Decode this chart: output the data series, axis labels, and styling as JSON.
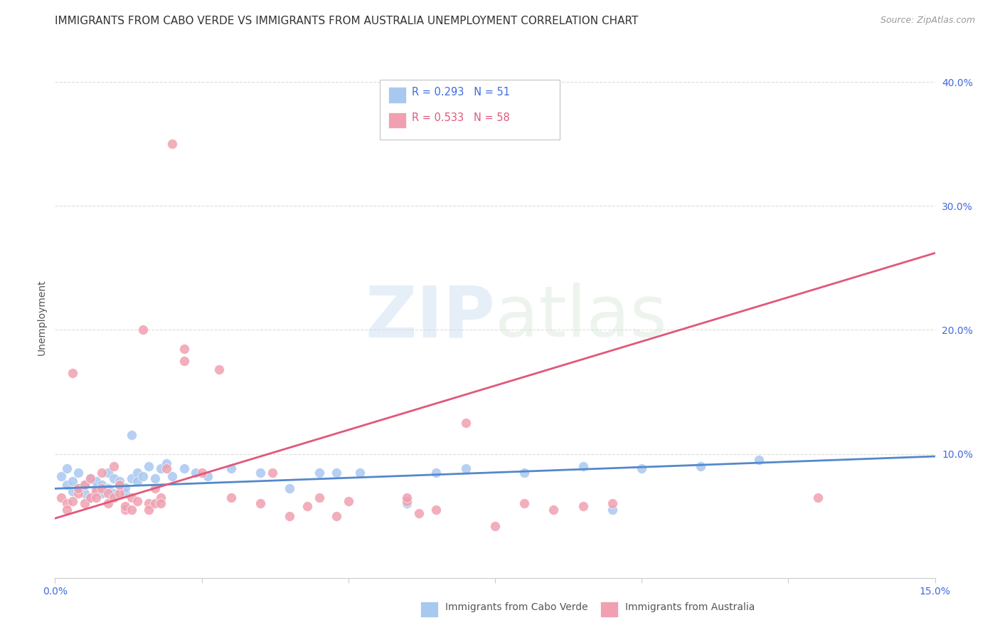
{
  "title": "IMMIGRANTS FROM CABO VERDE VS IMMIGRANTS FROM AUSTRALIA UNEMPLOYMENT CORRELATION CHART",
  "source": "Source: ZipAtlas.com",
  "ylabel": "Unemployment",
  "x_min": 0.0,
  "x_max": 0.15,
  "y_min": 0.0,
  "y_max": 0.42,
  "y_ticks": [
    0.1,
    0.2,
    0.3,
    0.4
  ],
  "y_tick_labels": [
    "10.0%",
    "20.0%",
    "30.0%",
    "40.0%"
  ],
  "watermark_zip": "ZIP",
  "watermark_atlas": "atlas",
  "legend_cabo_text": "R = 0.293   N = 51",
  "legend_aus_text": "R = 0.533   N = 58",
  "legend_label_cabo": "Immigrants from Cabo Verde",
  "legend_label_aus": "Immigrants from Australia",
  "cabo_color": "#a8c8f0",
  "aus_color": "#f0a0b0",
  "cabo_line_color": "#5588cc",
  "aus_line_color": "#e05878",
  "cabo_verde_points": [
    [
      0.001,
      0.082
    ],
    [
      0.002,
      0.088
    ],
    [
      0.002,
      0.075
    ],
    [
      0.003,
      0.078
    ],
    [
      0.003,
      0.07
    ],
    [
      0.004,
      0.072
    ],
    [
      0.004,
      0.085
    ],
    [
      0.005,
      0.068
    ],
    [
      0.005,
      0.075
    ],
    [
      0.006,
      0.08
    ],
    [
      0.006,
      0.065
    ],
    [
      0.007,
      0.072
    ],
    [
      0.007,
      0.078
    ],
    [
      0.008,
      0.068
    ],
    [
      0.008,
      0.075
    ],
    [
      0.009,
      0.085
    ],
    [
      0.009,
      0.072
    ],
    [
      0.01,
      0.068
    ],
    [
      0.01,
      0.08
    ],
    [
      0.011,
      0.078
    ],
    [
      0.011,
      0.075
    ],
    [
      0.012,
      0.068
    ],
    [
      0.012,
      0.073
    ],
    [
      0.013,
      0.115
    ],
    [
      0.013,
      0.08
    ],
    [
      0.014,
      0.085
    ],
    [
      0.014,
      0.078
    ],
    [
      0.015,
      0.082
    ],
    [
      0.016,
      0.09
    ],
    [
      0.017,
      0.08
    ],
    [
      0.018,
      0.088
    ],
    [
      0.019,
      0.092
    ],
    [
      0.02,
      0.082
    ],
    [
      0.022,
      0.088
    ],
    [
      0.024,
      0.085
    ],
    [
      0.026,
      0.082
    ],
    [
      0.03,
      0.088
    ],
    [
      0.035,
      0.085
    ],
    [
      0.04,
      0.072
    ],
    [
      0.045,
      0.085
    ],
    [
      0.048,
      0.085
    ],
    [
      0.052,
      0.085
    ],
    [
      0.06,
      0.06
    ],
    [
      0.065,
      0.085
    ],
    [
      0.07,
      0.088
    ],
    [
      0.08,
      0.085
    ],
    [
      0.09,
      0.09
    ],
    [
      0.095,
      0.055
    ],
    [
      0.1,
      0.088
    ],
    [
      0.11,
      0.09
    ],
    [
      0.12,
      0.095
    ]
  ],
  "australia_points": [
    [
      0.001,
      0.065
    ],
    [
      0.002,
      0.06
    ],
    [
      0.002,
      0.055
    ],
    [
      0.003,
      0.062
    ],
    [
      0.003,
      0.165
    ],
    [
      0.004,
      0.068
    ],
    [
      0.004,
      0.072
    ],
    [
      0.005,
      0.06
    ],
    [
      0.005,
      0.075
    ],
    [
      0.006,
      0.065
    ],
    [
      0.006,
      0.08
    ],
    [
      0.007,
      0.07
    ],
    [
      0.007,
      0.065
    ],
    [
      0.008,
      0.085
    ],
    [
      0.008,
      0.072
    ],
    [
      0.009,
      0.068
    ],
    [
      0.009,
      0.06
    ],
    [
      0.01,
      0.065
    ],
    [
      0.01,
      0.09
    ],
    [
      0.011,
      0.068
    ],
    [
      0.011,
      0.075
    ],
    [
      0.012,
      0.055
    ],
    [
      0.012,
      0.058
    ],
    [
      0.013,
      0.065
    ],
    [
      0.013,
      0.055
    ],
    [
      0.014,
      0.062
    ],
    [
      0.015,
      0.2
    ],
    [
      0.016,
      0.06
    ],
    [
      0.016,
      0.055
    ],
    [
      0.017,
      0.072
    ],
    [
      0.017,
      0.06
    ],
    [
      0.018,
      0.065
    ],
    [
      0.018,
      0.06
    ],
    [
      0.019,
      0.088
    ],
    [
      0.02,
      0.35
    ],
    [
      0.022,
      0.175
    ],
    [
      0.022,
      0.185
    ],
    [
      0.025,
      0.085
    ],
    [
      0.028,
      0.168
    ],
    [
      0.03,
      0.065
    ],
    [
      0.035,
      0.06
    ],
    [
      0.037,
      0.085
    ],
    [
      0.04,
      0.05
    ],
    [
      0.043,
      0.058
    ],
    [
      0.045,
      0.065
    ],
    [
      0.048,
      0.05
    ],
    [
      0.05,
      0.062
    ],
    [
      0.06,
      0.062
    ],
    [
      0.06,
      0.065
    ],
    [
      0.062,
      0.052
    ],
    [
      0.065,
      0.055
    ],
    [
      0.07,
      0.125
    ],
    [
      0.075,
      0.042
    ],
    [
      0.08,
      0.06
    ],
    [
      0.085,
      0.055
    ],
    [
      0.09,
      0.058
    ],
    [
      0.095,
      0.06
    ],
    [
      0.13,
      0.065
    ]
  ],
  "cabo_trend_x": [
    0.0,
    0.15
  ],
  "cabo_trend_y": [
    0.072,
    0.098
  ],
  "aus_trend_x": [
    0.0,
    0.15
  ],
  "aus_trend_y": [
    0.048,
    0.262
  ],
  "grid_color": "#dddddd",
  "background_color": "#ffffff",
  "title_fontsize": 11,
  "axis_label_fontsize": 10,
  "tick_fontsize": 10,
  "source_fontsize": 9
}
